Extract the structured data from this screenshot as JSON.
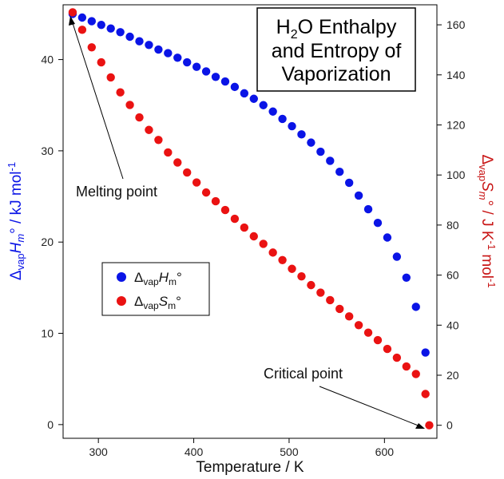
{
  "chart_data": {
    "type": "scatter",
    "title": {
      "line1_main": "H",
      "line1_sub": "2",
      "line1_rest": "O Enthalpy",
      "line2": "and Entropy of",
      "line3": "Vaporization"
    },
    "xlabel": "Temperature / K",
    "ylabel_left": {
      "delta": "Δ",
      "sub": "vap",
      "sym": "H",
      "symsub": "m",
      "rest": "° / kJ mol",
      "sup": "-1"
    },
    "ylabel_right": {
      "delta": "Δ",
      "sub": "vap",
      "sym": "S",
      "symsub": "m",
      "rest": "° / J K",
      "sup1": "-1",
      "mol": " mol",
      "sup2": "-1"
    },
    "xlim": [
      263,
      655
    ],
    "ylim_left": [
      -1.5,
      46
    ],
    "ylim_right": [
      -5.2,
      168
    ],
    "x_ticks": [
      300,
      400,
      500,
      600
    ],
    "x_tick_labels": [
      "300",
      "400",
      "500",
      "600"
    ],
    "y_left_ticks": [
      0,
      10,
      20,
      30,
      40
    ],
    "y_left_tick_labels": [
      "0",
      "10",
      "20",
      "30",
      "40"
    ],
    "y_right_ticks": [
      0,
      20,
      40,
      60,
      80,
      100,
      120,
      140,
      160
    ],
    "y_right_tick_labels": [
      "0",
      "20",
      "40",
      "60",
      "80",
      "100",
      "120",
      "140",
      "160"
    ],
    "grid": false,
    "legend": {
      "placement": "left-middle",
      "items": [
        {
          "delta": "Δ",
          "sub": "vap",
          "sym": "H",
          "symsub": "m",
          "rest": "°",
          "color": "#0a14e6"
        },
        {
          "delta": "Δ",
          "sub": "vap",
          "sym": "S",
          "symsub": "m",
          "rest": "°",
          "color": "#ea1212"
        }
      ]
    },
    "annotations": [
      {
        "text": "Melting point"
      },
      {
        "text": "Critical point"
      }
    ],
    "series": [
      {
        "axis": "left",
        "color": "#0a14e6",
        "x": [
          273,
          283,
          293,
          303,
          313,
          323,
          333,
          343,
          353,
          363,
          373,
          383,
          393,
          403,
          413,
          423,
          433,
          443,
          453,
          463,
          473,
          483,
          493,
          503,
          513,
          523,
          533,
          543,
          553,
          563,
          573,
          583,
          593,
          603,
          613,
          623,
          633,
          643
        ],
        "y": [
          45.0,
          44.6,
          44.2,
          43.8,
          43.4,
          43.0,
          42.5,
          42.0,
          41.6,
          41.1,
          40.7,
          40.2,
          39.7,
          39.2,
          38.7,
          38.1,
          37.6,
          37.0,
          36.3,
          35.7,
          35.0,
          34.3,
          33.5,
          32.7,
          31.8,
          30.9,
          29.9,
          28.9,
          27.7,
          26.5,
          25.1,
          23.6,
          22.1,
          20.5,
          18.4,
          16.1,
          12.9,
          7.9
        ]
      },
      {
        "axis": "right",
        "color": "#ea1212",
        "x": [
          273,
          283,
          293,
          303,
          313,
          323,
          333,
          343,
          353,
          363,
          373,
          383,
          393,
          403,
          413,
          423,
          433,
          443,
          453,
          463,
          473,
          483,
          493,
          503,
          513,
          523,
          533,
          543,
          553,
          563,
          573,
          583,
          593,
          603,
          613,
          623,
          633,
          643,
          647
        ],
        "y": [
          165,
          158,
          151,
          145,
          139,
          133,
          128,
          123,
          118,
          114,
          109,
          105,
          101,
          97,
          93,
          89.5,
          86,
          82.5,
          79,
          75.5,
          72.5,
          69,
          66,
          62.5,
          59.5,
          56,
          53,
          50,
          46.5,
          43.5,
          40,
          37,
          34,
          30.5,
          27,
          23.5,
          20.5,
          12.5,
          0
        ]
      }
    ]
  }
}
